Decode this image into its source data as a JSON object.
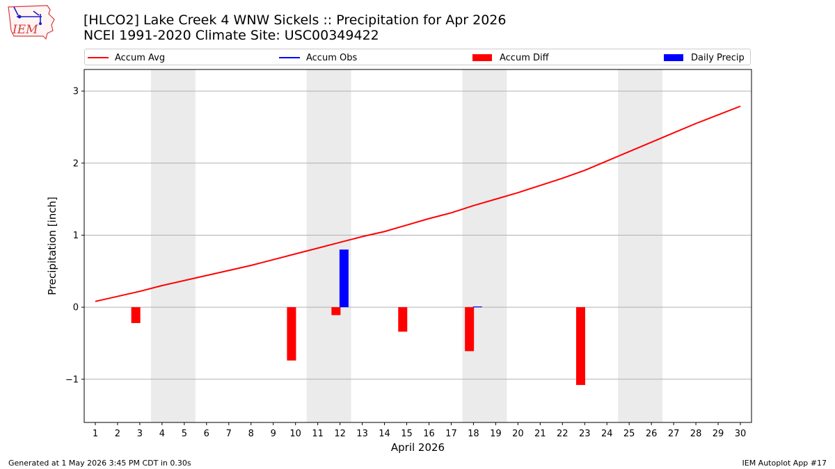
{
  "logo": {
    "text": "IEM",
    "icon": "iowa-state-weather-station-logo"
  },
  "title": {
    "line1": "[HLCO2] Lake Creek 4 WNW Sickels :: Precipitation for Apr 2026",
    "line2": "NCEI 1991-2020 Climate Site: USC00349422"
  },
  "legend": [
    {
      "label": "Accum Avg",
      "kind": "line",
      "color": "#ff0000"
    },
    {
      "label": "Accum Obs",
      "kind": "line",
      "color": "#0000ff"
    },
    {
      "label": "Accum Diff",
      "kind": "bar",
      "color": "#ff0000"
    },
    {
      "label": "Daily Precip",
      "kind": "bar",
      "color": "#0000ff"
    }
  ],
  "footer": {
    "left": "Generated at 1 May 2026 3:45 PM CDT in 0.30s",
    "right": "IEM Autoplot App #17"
  },
  "chart_data": {
    "type": "bar",
    "xlabel": "April 2026",
    "ylabel": "Precipitation [inch]",
    "ylim": [
      -1.6,
      3.3
    ],
    "xlim": [
      0.5,
      30.5
    ],
    "yticks": [
      -1,
      0,
      1,
      2,
      3
    ],
    "ytick_labels": [
      "−1",
      "0",
      "1",
      "2",
      "3"
    ],
    "xticks": [
      1,
      2,
      3,
      4,
      5,
      6,
      7,
      8,
      9,
      10,
      11,
      12,
      13,
      14,
      15,
      16,
      17,
      18,
      19,
      20,
      21,
      22,
      23,
      24,
      25,
      26,
      27,
      28,
      29,
      30
    ],
    "grid": "horizontal",
    "weekend_shading": [
      [
        4,
        5
      ],
      [
        11,
        12
      ],
      [
        18,
        19
      ],
      [
        25,
        26
      ]
    ],
    "shade_color": "#ebebeb",
    "accum_avg": {
      "name": "Accum Avg",
      "color": "#ff0000",
      "x": [
        1,
        2,
        3,
        4,
        5,
        6,
        7,
        8,
        9,
        10,
        11,
        12,
        13,
        14,
        15,
        16,
        17,
        18,
        19,
        20,
        21,
        22,
        23,
        24,
        25,
        26,
        27,
        28,
        29,
        30
      ],
      "values": [
        0.08,
        0.15,
        0.22,
        0.3,
        0.37,
        0.44,
        0.51,
        0.58,
        0.66,
        0.74,
        0.82,
        0.9,
        0.98,
        1.05,
        1.14,
        1.23,
        1.31,
        1.41,
        1.5,
        1.59,
        1.69,
        1.79,
        1.9,
        2.03,
        2.16,
        2.29,
        2.42,
        2.55,
        2.67,
        2.79
      ]
    },
    "accum_diff": {
      "name": "Accum Diff",
      "color": "#ff0000",
      "days": [
        3,
        10,
        12,
        15,
        18,
        23
      ],
      "values": [
        -0.22,
        -0.74,
        -0.11,
        -0.34,
        -0.61,
        -1.08
      ]
    },
    "daily_precip": {
      "name": "Daily Precip",
      "color": "#0000ff",
      "days": [
        12,
        18
      ],
      "values": [
        0.8,
        0.01
      ]
    }
  }
}
